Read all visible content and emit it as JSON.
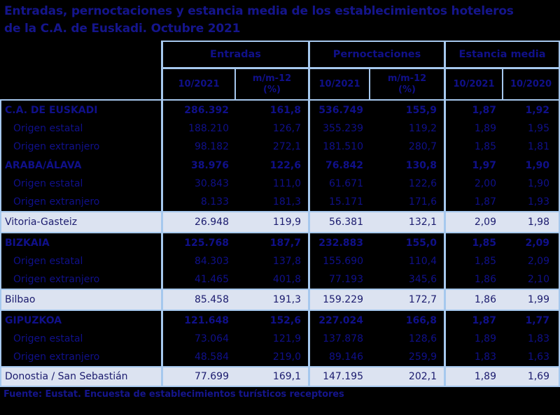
{
  "title": {
    "line1": "Entradas, pernoctaciones y estancia media de los establecimientos hoteleros",
    "line2": "de la C.A. de Euskadi.  Octubre 2021"
  },
  "table": {
    "col_groups": [
      {
        "label": "Entradas",
        "sub": [
          "10/2021",
          "m/m-12\n(%)"
        ]
      },
      {
        "label": "Pernoctaciones",
        "sub": [
          "10/2021",
          "m/m-12\n(%)"
        ]
      },
      {
        "label": "Estancia media",
        "sub": [
          "10/2021",
          "10/2020"
        ]
      }
    ],
    "rows": [
      {
        "label": "C.A. DE EUSKADI",
        "style": "territory",
        "values": [
          "286.392",
          "161,8",
          "536.749",
          "155,9",
          "1,87",
          "1,92"
        ]
      },
      {
        "label": "Origen estatal",
        "style": "origin",
        "values": [
          "188.210",
          "126,7",
          "355.239",
          "119,2",
          "1,89",
          "1,95"
        ]
      },
      {
        "label": "Origen extranjero",
        "style": "origin",
        "values": [
          "98.182",
          "272,1",
          "181.510",
          "280,7",
          "1,85",
          "1,81"
        ]
      },
      {
        "label": "ARABA/ÁLAVA",
        "style": "territory",
        "values": [
          "38.976",
          "122,6",
          "76.842",
          "130,8",
          "1,97",
          "1,90"
        ]
      },
      {
        "label": "Origen estatal",
        "style": "origin",
        "values": [
          "30.843",
          "111,0",
          "61.671",
          "122,6",
          "2,00",
          "1,90"
        ]
      },
      {
        "label": "Origen extranjero",
        "style": "origin",
        "values": [
          "8.133",
          "181,3",
          "15.171",
          "171,6",
          "1,87",
          "1,93"
        ]
      },
      {
        "label": "Vitoria-Gasteiz",
        "style": "city",
        "values": [
          "26.948",
          "119,9",
          "56.381",
          "132,1",
          "2,09",
          "1,98"
        ]
      },
      {
        "label": "BIZKAIA",
        "style": "territory",
        "values": [
          "125.768",
          "187,7",
          "232.883",
          "155,0",
          "1,85",
          "2,09"
        ]
      },
      {
        "label": "Origen estatal",
        "style": "origin",
        "values": [
          "84.303",
          "137,8",
          "155.690",
          "110,4",
          "1,85",
          "2,09"
        ]
      },
      {
        "label": "Origen extranjero",
        "style": "origin",
        "values": [
          "41.465",
          "401,8",
          "77.193",
          "345,6",
          "1,86",
          "2,10"
        ]
      },
      {
        "label": "Bilbao",
        "style": "city",
        "values": [
          "85.458",
          "191,3",
          "159.229",
          "172,7",
          "1,86",
          "1,99"
        ]
      },
      {
        "label": "GIPUZKOA",
        "style": "territory",
        "values": [
          "121.648",
          "152,6",
          "227.024",
          "166,8",
          "1,87",
          "1,77"
        ]
      },
      {
        "label": "Origen estatal",
        "style": "origin",
        "values": [
          "73.064",
          "121,9",
          "137.878",
          "128,6",
          "1,89",
          "1,83"
        ]
      },
      {
        "label": "Origen extranjero",
        "style": "origin",
        "values": [
          "48.584",
          "219,0",
          "89.146",
          "259,9",
          "1,83",
          "1,63"
        ]
      },
      {
        "label": "Donostia / San Sebastián",
        "style": "city",
        "values": [
          "77.699",
          "169,1",
          "147.195",
          "202,1",
          "1,89",
          "1,69"
        ]
      }
    ]
  },
  "footer": {
    "source": "Fuente: Eustat. Encuesta de establecimientos turísticos receptores"
  },
  "colors": {
    "background": "#000000",
    "grid_border": "#a6c8ee",
    "text_navy": "#10108a",
    "title_navy": "#15158c",
    "highlight_row_bg": "#dce3f1",
    "highlight_row_text": "#1b1b6e"
  }
}
